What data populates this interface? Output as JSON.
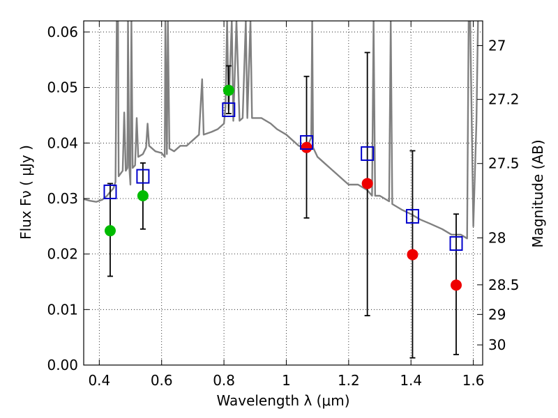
{
  "chart_data": {
    "type": "scatter",
    "xlabel": "Wavelength  λ (μm)",
    "ylabel": "Flux  Fν  ( μJy )",
    "ylabel_right": "Magnitude (AB)",
    "xlim": [
      0.35,
      1.63
    ],
    "ylim": [
      0.0,
      0.062
    ],
    "grid": true,
    "x_ticks": [
      {
        "value": 0.4,
        "label": "0.4"
      },
      {
        "value": 0.6,
        "label": "0.6"
      },
      {
        "value": 0.8,
        "label": "0.8"
      },
      {
        "value": 1.0,
        "label": "1"
      },
      {
        "value": 1.2,
        "label": "1.2"
      },
      {
        "value": 1.4,
        "label": "1.4"
      },
      {
        "value": 1.6,
        "label": "1.6"
      }
    ],
    "y_ticks": [
      {
        "value": 0.0,
        "label": "0.00"
      },
      {
        "value": 0.01,
        "label": "0.01"
      },
      {
        "value": 0.02,
        "label": "0.02"
      },
      {
        "value": 0.03,
        "label": "0.03"
      },
      {
        "value": 0.04,
        "label": "0.04"
      },
      {
        "value": 0.05,
        "label": "0.05"
      },
      {
        "value": 0.06,
        "label": "0.06"
      }
    ],
    "right_ticks": [
      {
        "mag": 27,
        "label": "27"
      },
      {
        "mag": 27.2,
        "label": "27.2"
      },
      {
        "mag": 27.5,
        "label": "27.5"
      },
      {
        "mag": 28,
        "label": "28"
      },
      {
        "mag": 28.5,
        "label": "28.5"
      },
      {
        "mag": 29,
        "label": "29"
      },
      {
        "mag": 30,
        "label": "30"
      }
    ],
    "series": [
      {
        "kind": "errorbar-points",
        "color": "#00bb00",
        "points": [
          {
            "x": 0.435,
            "y": 0.0242,
            "ylo": 0.016,
            "yhi": 0.0327
          },
          {
            "x": 0.54,
            "y": 0.0305,
            "ylo": 0.0245,
            "yhi": 0.0364
          },
          {
            "x": 0.815,
            "y": 0.0495,
            "ylo": 0.0453,
            "yhi": 0.0539
          }
        ]
      },
      {
        "kind": "errorbar-points",
        "color": "#ee0000",
        "points": [
          {
            "x": 1.065,
            "y": 0.0392,
            "ylo": 0.0265,
            "yhi": 0.052
          },
          {
            "x": 1.26,
            "y": 0.0327,
            "ylo": 0.0089,
            "yhi": 0.0563
          },
          {
            "x": 1.405,
            "y": 0.0199,
            "ylo": 0.0013,
            "yhi": 0.0386
          },
          {
            "x": 1.545,
            "y": 0.0144,
            "ylo": 0.0019,
            "yhi": 0.0272
          }
        ]
      },
      {
        "kind": "model-squares",
        "color": "#0000cc",
        "points": [
          {
            "x": 0.435,
            "y": 0.0312
          },
          {
            "x": 0.54,
            "y": 0.034
          },
          {
            "x": 0.815,
            "y": 0.046
          },
          {
            "x": 1.065,
            "y": 0.0401
          },
          {
            "x": 1.26,
            "y": 0.0381
          },
          {
            "x": 1.405,
            "y": 0.0268
          },
          {
            "x": 1.545,
            "y": 0.0219
          }
        ]
      },
      {
        "kind": "spectrum",
        "color": "#808080",
        "points": [
          [
            0.35,
            0.0299
          ],
          [
            0.37,
            0.0296
          ],
          [
            0.39,
            0.0294
          ],
          [
            0.41,
            0.0298
          ],
          [
            0.425,
            0.0305
          ],
          [
            0.435,
            0.0312
          ],
          [
            0.445,
            0.0318
          ],
          [
            0.452,
            0.033
          ],
          [
            0.456,
            0.062
          ],
          [
            0.46,
            0.062
          ],
          [
            0.462,
            0.034
          ],
          [
            0.475,
            0.035
          ],
          [
            0.48,
            0.0455
          ],
          [
            0.485,
            0.035
          ],
          [
            0.49,
            0.0355
          ],
          [
            0.492,
            0.062
          ],
          [
            0.496,
            0.036
          ],
          [
            0.5,
            0.0325
          ],
          [
            0.503,
            0.062
          ],
          [
            0.507,
            0.0355
          ],
          [
            0.515,
            0.036
          ],
          [
            0.52,
            0.0445
          ],
          [
            0.525,
            0.0375
          ],
          [
            0.54,
            0.038
          ],
          [
            0.55,
            0.0392
          ],
          [
            0.555,
            0.0435
          ],
          [
            0.56,
            0.0395
          ],
          [
            0.58,
            0.0385
          ],
          [
            0.6,
            0.0382
          ],
          [
            0.61,
            0.0375
          ],
          [
            0.612,
            0.062
          ],
          [
            0.617,
            0.038
          ],
          [
            0.62,
            0.062
          ],
          [
            0.625,
            0.039
          ],
          [
            0.64,
            0.0385
          ],
          [
            0.66,
            0.0395
          ],
          [
            0.68,
            0.0395
          ],
          [
            0.7,
            0.0405
          ],
          [
            0.72,
            0.0415
          ],
          [
            0.73,
            0.0515
          ],
          [
            0.735,
            0.0415
          ],
          [
            0.76,
            0.042
          ],
          [
            0.78,
            0.0425
          ],
          [
            0.8,
            0.0435
          ],
          [
            0.805,
            0.0465
          ],
          [
            0.81,
            0.062
          ],
          [
            0.815,
            0.046
          ],
          [
            0.825,
            0.062
          ],
          [
            0.83,
            0.044
          ],
          [
            0.84,
            0.062
          ],
          [
            0.85,
            0.044
          ],
          [
            0.86,
            0.0445
          ],
          [
            0.87,
            0.062
          ],
          [
            0.875,
            0.0445
          ],
          [
            0.885,
            0.062
          ],
          [
            0.89,
            0.0445
          ],
          [
            0.92,
            0.0445
          ],
          [
            0.95,
            0.0435
          ],
          [
            0.97,
            0.0425
          ],
          [
            1.0,
            0.0415
          ],
          [
            1.02,
            0.0405
          ],
          [
            1.04,
            0.0395
          ],
          [
            1.065,
            0.039
          ],
          [
            1.08,
            0.041
          ],
          [
            1.083,
            0.062
          ],
          [
            1.086,
            0.0392
          ],
          [
            1.1,
            0.0375
          ],
          [
            1.12,
            0.0365
          ],
          [
            1.14,
            0.0355
          ],
          [
            1.16,
            0.0345
          ],
          [
            1.18,
            0.0335
          ],
          [
            1.2,
            0.0325
          ],
          [
            1.23,
            0.0325
          ],
          [
            1.26,
            0.0315
          ],
          [
            1.275,
            0.0305
          ],
          [
            1.28,
            0.062
          ],
          [
            1.285,
            0.0305
          ],
          [
            1.3,
            0.0305
          ],
          [
            1.33,
            0.0295
          ],
          [
            1.335,
            0.062
          ],
          [
            1.34,
            0.029
          ],
          [
            1.37,
            0.028
          ],
          [
            1.4,
            0.0272
          ],
          [
            1.43,
            0.0262
          ],
          [
            1.46,
            0.0255
          ],
          [
            1.5,
            0.0245
          ],
          [
            1.53,
            0.0235
          ],
          [
            1.56,
            0.0235
          ],
          [
            1.58,
            0.0228
          ],
          [
            1.585,
            0.062
          ],
          [
            1.59,
            0.062
          ],
          [
            1.6,
            0.025
          ],
          [
            1.61,
            0.044
          ],
          [
            1.615,
            0.062
          ]
        ]
      }
    ]
  }
}
